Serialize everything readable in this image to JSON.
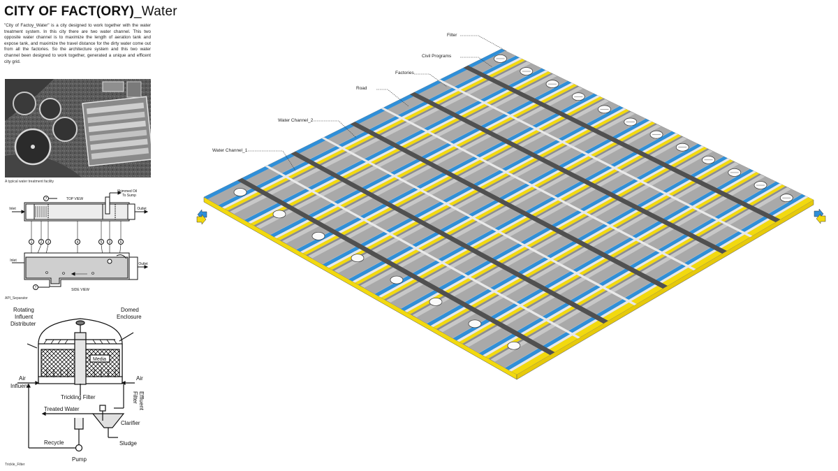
{
  "title": {
    "bold": "CITY OF FACT(ORY)",
    "thin": "_Water"
  },
  "description": "\"City of Factoy_Water\" is a city designed to work together with the water treatment system. In this city there are two water channel. This two opposite water channel is to maximize the length of  aeration tank and expose tank, and maximize the travel distance for the dirty water come out from all the factories.  So the architecture system and this two water channel been designed to work together, generated a unique and efficent city grid.",
  "photo_caption": "A typical water treatment facility",
  "api": {
    "caption": "API_Separator",
    "top_view": "TOP VIEW",
    "side_view": "SIDE VIEW",
    "skimmed_oil": "Skimmed  Oil",
    "to_sump": "To Sump",
    "inlet": "Inlet",
    "outlet": "Outlet",
    "num_7": "7",
    "nums": [
      "1",
      "2",
      "3",
      "4",
      "5",
      "3",
      "6"
    ]
  },
  "trickle": {
    "caption": "Trickle_Filter",
    "rotating": "Rotating",
    "influent": "Influent",
    "distributer": "Distributer",
    "domed": "Domed",
    "enclosure": "Enclosure",
    "media": "Media",
    "air_left": "Air",
    "influent_left": "Influent",
    "air_right": "Air",
    "trickling_filter": "Trickling Filter",
    "filter_effluent_1": "Filter",
    "filter_effluent_2": "Effluent",
    "treated_water": "Treated Water",
    "clarifier": "Clarifier",
    "recycle": "Recycle",
    "sludge": "Sludge",
    "pump": "Pump"
  },
  "callouts": {
    "filter": "Filter",
    "civil_programs": "Civil Programs",
    "factories": "Factories",
    "road": "Road",
    "water_channel_2": "Water Channel_2",
    "water_channel_1": "Water Channel_1"
  },
  "colors": {
    "channel_blue": "#2f8fd8",
    "channel_yellow": "#f2d90f",
    "road_dark": "#505050",
    "factory_gray": "#a9a9a9",
    "platform_gray": "#c8c8c8"
  }
}
